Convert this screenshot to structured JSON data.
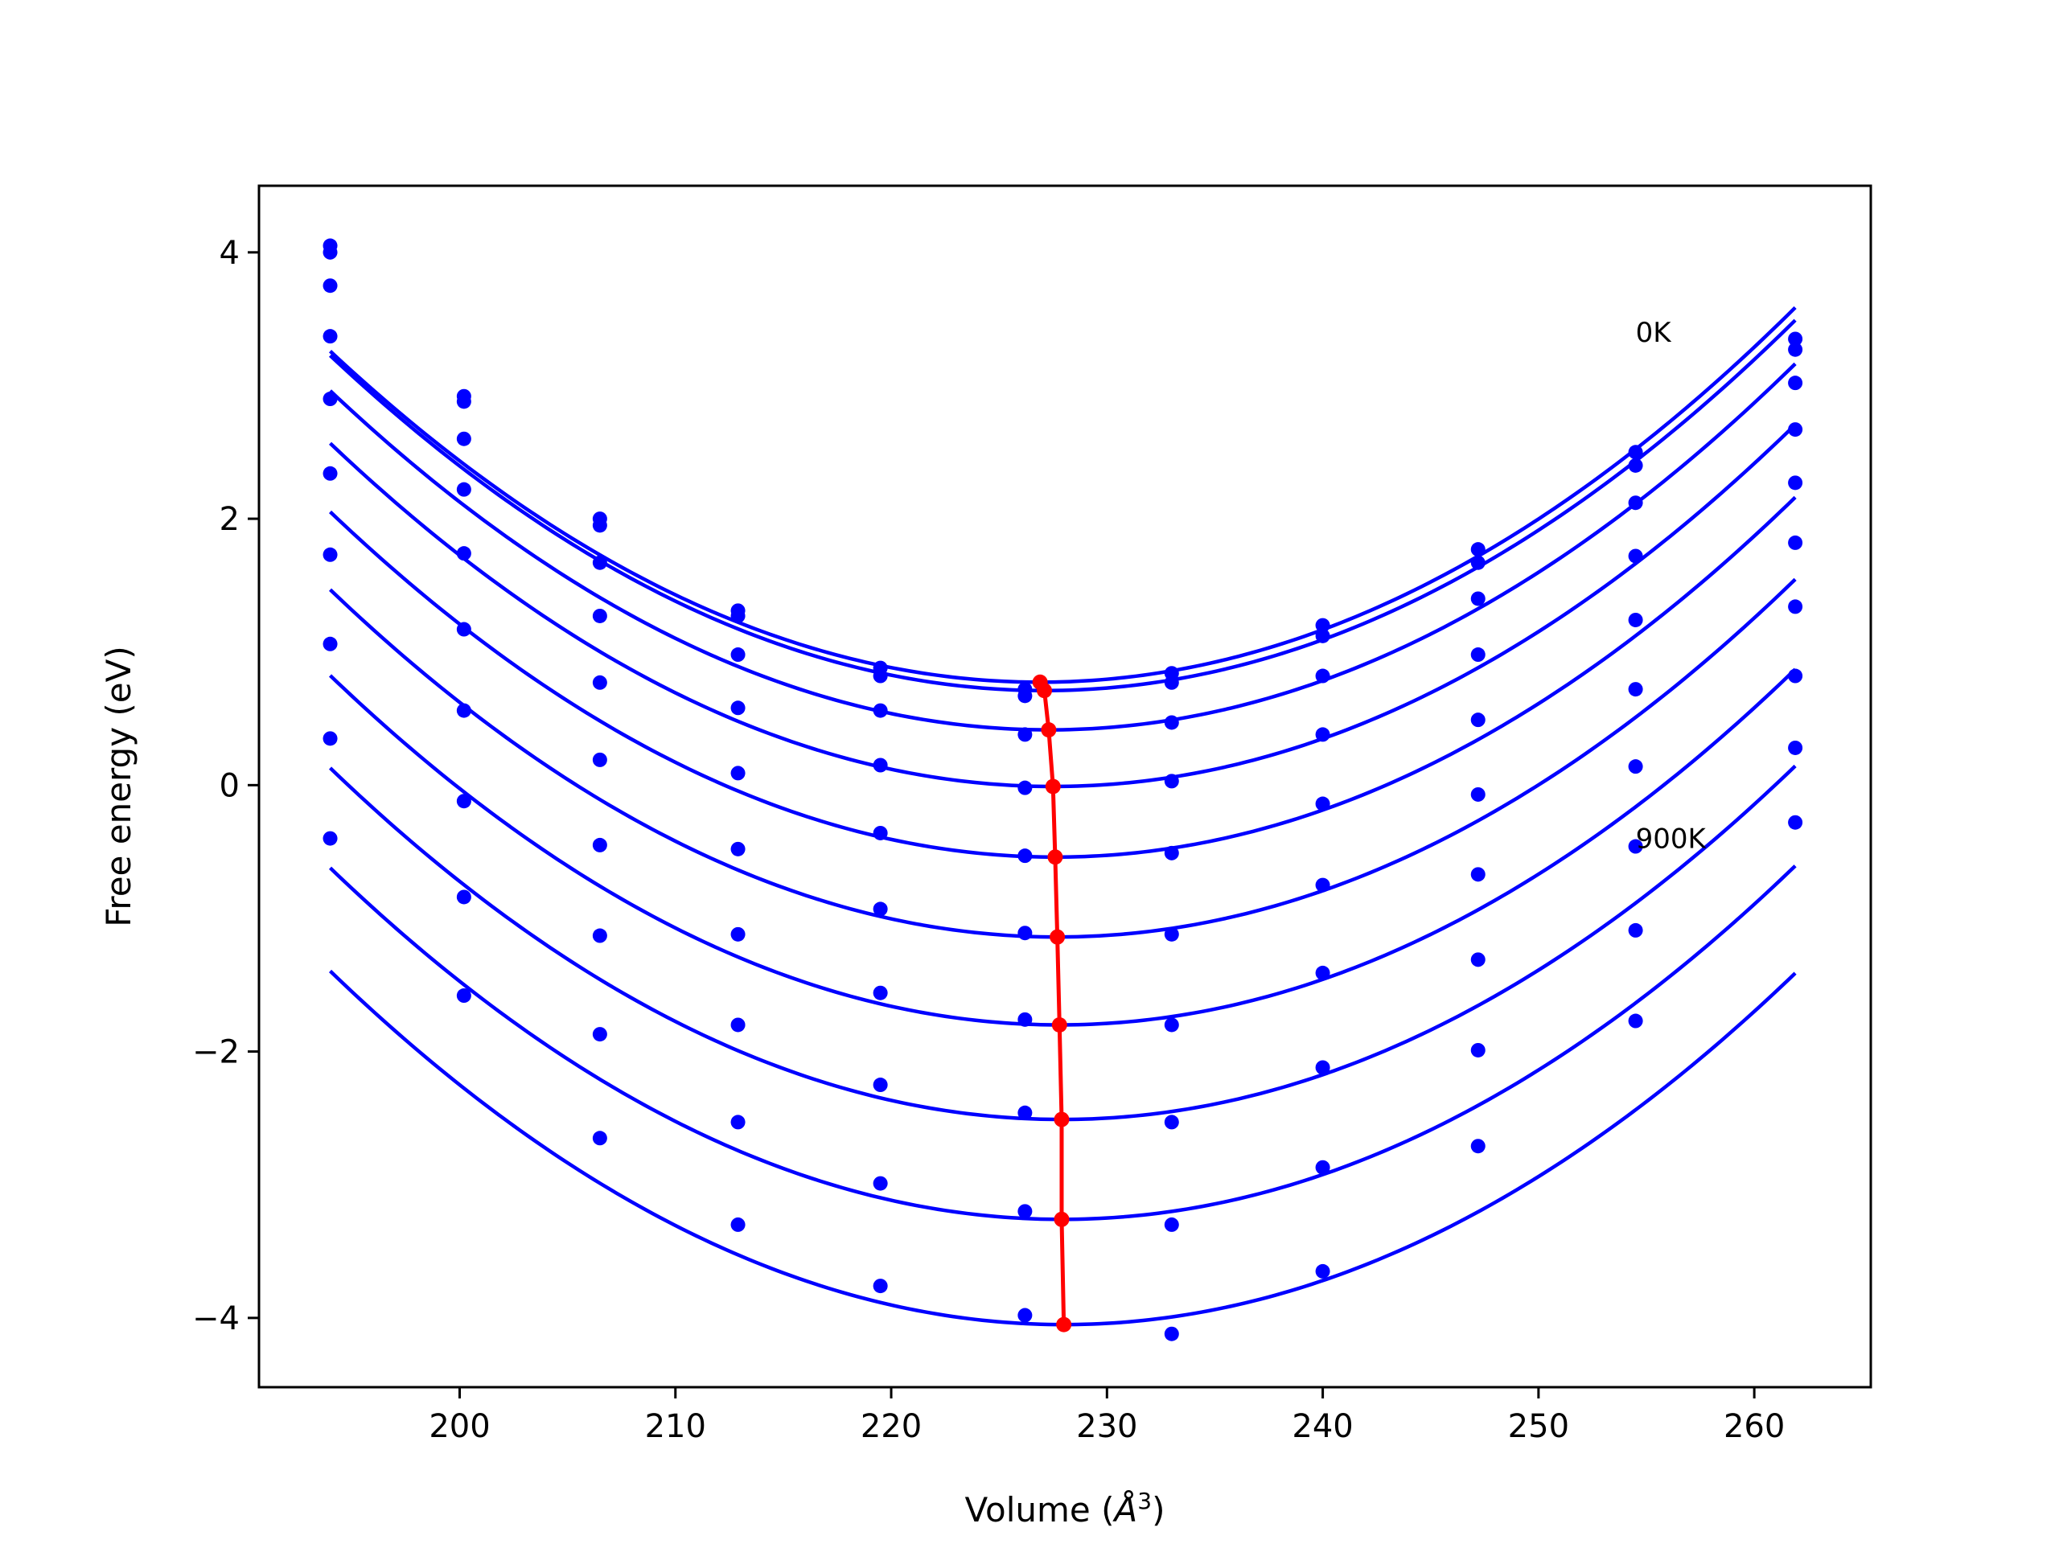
{
  "chart_data": {
    "type": "line",
    "title": "",
    "xlabel": "Volume (",
    "xlabel_symbol": "Å",
    "xlabel_exp": "3",
    "xlabel_close": ")",
    "ylabel": "Free energy (eV)",
    "xlim": [
      190.7,
      265.4
    ],
    "ylim": [
      -4.52,
      4.5
    ],
    "xticks": [
      200,
      210,
      220,
      230,
      240,
      250,
      260
    ],
    "xtick_labels": [
      "200",
      "210",
      "220",
      "230",
      "240",
      "250",
      "260"
    ],
    "yticks": [
      -4,
      -2,
      0,
      2,
      4
    ],
    "ytick_labels": [
      "−4",
      "−2",
      "0",
      "2",
      "4"
    ],
    "grid": false,
    "legend": "none",
    "curve_color": "#0000ff",
    "minima_color": "#ff0000",
    "x": [
      194.0,
      200.2,
      206.5,
      212.9,
      219.5,
      226.2,
      233.0,
      240.0,
      247.2,
      254.5,
      261.9
    ],
    "series": [
      {
        "fit": [
          0.002296,
          0.773,
          226.9
        ],
        "points": [
          4.05,
          2.92,
          2.0,
          1.31,
          0.88,
          0.72,
          0.84,
          1.2,
          1.77,
          2.5,
          3.35
        ]
      },
      {
        "fit": [
          0.002296,
          0.71,
          227.1
        ],
        "points": [
          4.0,
          2.88,
          1.95,
          1.27,
          0.82,
          0.67,
          0.77,
          1.12,
          1.67,
          2.4,
          3.27
        ]
      },
      {
        "fit": [
          0.002296,
          0.415,
          227.3
        ],
        "points": [
          3.75,
          2.6,
          1.67,
          0.98,
          0.56,
          0.38,
          0.47,
          0.82,
          1.4,
          2.12,
          3.02
        ]
      },
      {
        "fit": [
          0.002296,
          -0.01,
          227.5
        ],
        "points": [
          3.37,
          2.22,
          1.27,
          0.58,
          0.15,
          -0.02,
          0.03,
          0.38,
          0.98,
          1.72,
          2.67
        ]
      },
      {
        "fit": [
          0.002296,
          -0.54,
          227.6
        ],
        "points": [
          2.9,
          1.74,
          0.77,
          0.09,
          -0.36,
          -0.53,
          -0.51,
          -0.14,
          0.49,
          1.24,
          2.27
        ]
      },
      {
        "fit": [
          0.002296,
          -1.14,
          227.7
        ],
        "points": [
          2.34,
          1.17,
          0.19,
          -0.48,
          -0.93,
          -1.11,
          -1.12,
          -0.75,
          -0.07,
          0.72,
          1.82
        ]
      },
      {
        "fit": [
          0.002296,
          -1.8,
          227.8
        ],
        "points": [
          1.73,
          0.56,
          -0.45,
          -1.12,
          -1.56,
          -1.76,
          -1.8,
          -1.41,
          -0.67,
          0.14,
          1.34
        ]
      },
      {
        "fit": [
          0.002296,
          -2.51,
          227.9
        ],
        "points": [
          1.06,
          -0.12,
          -1.13,
          -1.8,
          -2.25,
          -2.46,
          -2.53,
          -2.12,
          -1.31,
          -0.46,
          0.82
        ]
      },
      {
        "fit": [
          0.002296,
          -3.26,
          227.9
        ],
        "points": [
          0.35,
          -0.84,
          -1.87,
          -2.53,
          -2.99,
          -3.2,
          -3.3,
          -2.87,
          -1.99,
          -1.09,
          0.28
        ]
      },
      {
        "fit": [
          0.002296,
          -4.05,
          228.0
        ],
        "points": [
          -0.4,
          -1.58,
          -2.65,
          -3.3,
          -3.76,
          -3.98,
          -4.12,
          -3.65,
          -2.71,
          -1.77,
          -0.28
        ]
      }
    ],
    "annotations": [
      {
        "text": "0K",
        "x": 254.5,
        "y": 3.4
      },
      {
        "text": "900K",
        "x": 254.5,
        "y": -0.4
      }
    ]
  }
}
